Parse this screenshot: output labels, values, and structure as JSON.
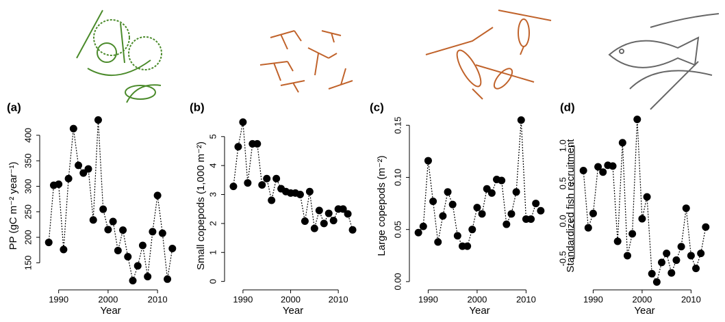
{
  "chart_data": [
    {
      "type": "line",
      "panel_label": "(a)",
      "xlabel": "Year",
      "ylabel": "PP (gC m⁻² year⁻¹)",
      "color": "#000000",
      "linestyle": "dotted",
      "x": [
        1988,
        1989,
        1990,
        1991,
        1992,
        1993,
        1994,
        1995,
        1996,
        1997,
        1998,
        1999,
        2000,
        2001,
        2002,
        2003,
        2004,
        2005,
        2006,
        2007,
        2008,
        2009,
        2010,
        2011,
        2012,
        2013
      ],
      "values": [
        190,
        302,
        304,
        176,
        315,
        413,
        341,
        326,
        334,
        234,
        430,
        255,
        215,
        231,
        174,
        214,
        162,
        115,
        144,
        184,
        123,
        211,
        282,
        208,
        118,
        178
      ],
      "xlim": [
        1987,
        2014
      ],
      "ylim": [
        105,
        440
      ],
      "xticks": [
        1990,
        2000,
        2010
      ],
      "yticks": [
        150,
        200,
        250,
        300,
        350,
        400
      ]
    },
    {
      "type": "line",
      "panel_label": "(b)",
      "xlabel": "Year",
      "ylabel": "Small copepods (1,000 m⁻²)",
      "color": "#000000",
      "linestyle": "dotted",
      "x": [
        1988,
        1989,
        1990,
        1991,
        1992,
        1993,
        1994,
        1995,
        1996,
        1997,
        1998,
        1999,
        2000,
        2001,
        2002,
        2003,
        2004,
        2005,
        2006,
        2007,
        2008,
        2009,
        2010,
        2011,
        2012,
        2013
      ],
      "values": [
        3.28,
        4.65,
        5.5,
        3.4,
        4.75,
        4.75,
        3.33,
        3.55,
        2.8,
        3.55,
        3.2,
        3.1,
        3.05,
        3.05,
        3.0,
        2.08,
        3.1,
        1.83,
        2.45,
        2.0,
        2.35,
        2.1,
        2.5,
        2.5,
        2.33,
        1.78
      ],
      "xlim": [
        1987,
        2014
      ],
      "ylim": [
        -0.15,
        5.75
      ],
      "xticks": [
        1990,
        2000,
        2010
      ],
      "yticks": [
        0,
        1,
        2,
        3,
        4,
        5
      ]
    },
    {
      "type": "line",
      "panel_label": "(c)",
      "xlabel": "Year",
      "ylabel": "Large copepods (m⁻²)",
      "color": "#000000",
      "linestyle": "dotted",
      "x": [
        1988,
        1989,
        1990,
        1991,
        1992,
        1993,
        1994,
        1995,
        1996,
        1997,
        1998,
        1999,
        2000,
        2001,
        2002,
        2003,
        2004,
        2005,
        2006,
        2007,
        2008,
        2009,
        2010,
        2011,
        2012,
        2013
      ],
      "values": [
        0.047,
        0.053,
        0.116,
        0.077,
        0.038,
        0.063,
        0.086,
        0.074,
        0.044,
        0.034,
        0.034,
        0.05,
        0.071,
        0.065,
        0.089,
        0.085,
        0.098,
        0.097,
        0.055,
        0.065,
        0.086,
        0.155,
        0.06,
        0.06,
        0.075,
        0.068
      ],
      "xlim": [
        1987,
        2014
      ],
      "ylim": [
        -0.004,
        0.16
      ],
      "xticks": [
        1990,
        2000,
        2010
      ],
      "yticks": [
        {
          "value": 0,
          "label": "0.00"
        },
        {
          "value": 0.05,
          "label": "0.05"
        },
        {
          "value": 0.1,
          "label": "0.10"
        },
        {
          "value": 0.15,
          "label": "0.15"
        }
      ]
    },
    {
      "type": "line",
      "panel_label": "(d)",
      "xlabel": "Year",
      "ylabel": "Standardized fish recruitment",
      "color": "#000000",
      "linestyle": "dotted",
      "x": [
        1988,
        1989,
        1990,
        1991,
        1992,
        1993,
        1994,
        1995,
        1996,
        1997,
        1998,
        1999,
        2000,
        2001,
        2002,
        2003,
        2004,
        2005,
        2006,
        2007,
        2008,
        2009,
        2010,
        2011,
        2012,
        2013
      ],
      "values": [
        0.67,
        -0.09,
        0.1,
        0.72,
        0.65,
        0.74,
        0.73,
        -0.27,
        1.04,
        -0.46,
        -0.17,
        1.35,
        0.03,
        0.32,
        -0.7,
        -0.81,
        -0.55,
        -0.43,
        -0.69,
        -0.52,
        -0.34,
        0.17,
        -0.46,
        -0.63,
        -0.43,
        -0.08
      ],
      "xlim": [
        1987,
        2014
      ],
      "ylim": [
        -0.86,
        1.41
      ],
      "xticks": [
        1990,
        2000,
        2010
      ],
      "yticks": [
        -0.5,
        {
          "value": 0,
          "label": "0.0"
        },
        0.5,
        {
          "value": 1,
          "label": "1.0"
        }
      ]
    }
  ]
}
